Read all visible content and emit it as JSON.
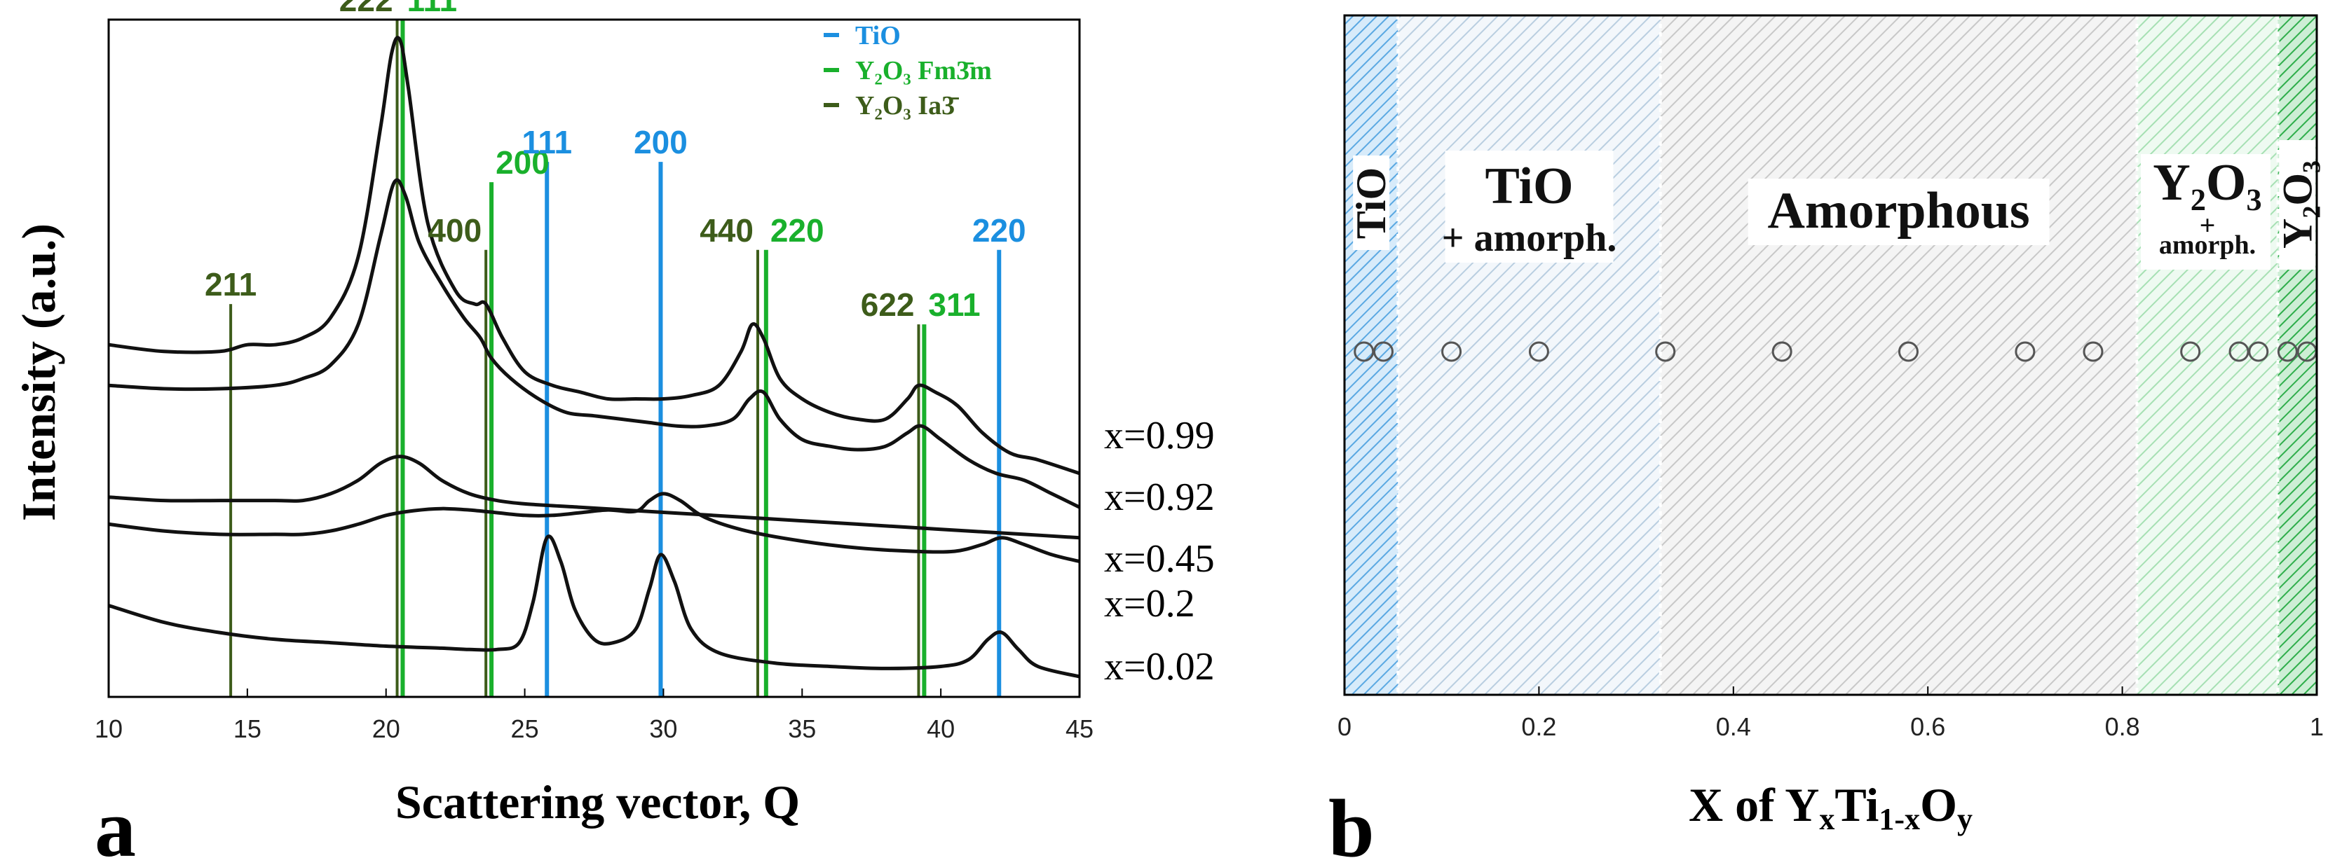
{
  "chart_data": [
    {
      "type": "line",
      "panel_label": "a",
      "xlabel": "Scattering vector, Q",
      "ylabel": "Intensity (a.u.)",
      "xlim": [
        10,
        45
      ],
      "xticks": [
        10,
        15,
        20,
        25,
        30,
        35,
        40,
        45
      ],
      "xtick_labels": [
        "10",
        "15",
        "20",
        "25",
        "30",
        "35",
        "40",
        "45"
      ],
      "legend_position": "top-right",
      "legend": [
        {
          "name": "TiO",
          "color": "#1b8fe0"
        },
        {
          "name": "Y₂O₃ Fm3̄m",
          "color": "#19b02c"
        },
        {
          "name": "Y₂O₃ Ia3̄",
          "color": "#3d5c1a"
        }
      ],
      "reference_lines": [
        {
          "phase": "Y2O3 Ia3",
          "hkl": "211",
          "q": 14.4,
          "top_intensity": 0.58,
          "color": "#3d5c1a"
        },
        {
          "phase": "Y2O3 Ia3",
          "hkl": "222",
          "q": 20.4,
          "top_intensity": 1.0,
          "color": "#3d5c1a"
        },
        {
          "phase": "Y2O3 Fm3m",
          "hkl": "111",
          "q": 20.6,
          "top_intensity": 1.0,
          "color": "#19b02c"
        },
        {
          "phase": "Y2O3 Ia3",
          "hkl": "400",
          "q": 23.6,
          "top_intensity": 0.66,
          "color": "#3d5c1a"
        },
        {
          "phase": "Y2O3 Fm3m",
          "hkl": "200",
          "q": 23.8,
          "top_intensity": 0.76,
          "color": "#19b02c"
        },
        {
          "phase": "TiO",
          "hkl": "111",
          "q": 25.8,
          "top_intensity": 0.79,
          "color": "#1b8fe0"
        },
        {
          "phase": "TiO",
          "hkl": "200",
          "q": 29.9,
          "top_intensity": 0.79,
          "color": "#1b8fe0"
        },
        {
          "phase": "Y2O3 Ia3",
          "hkl": "440",
          "q": 33.4,
          "top_intensity": 0.66,
          "color": "#3d5c1a"
        },
        {
          "phase": "Y2O3 Fm3m",
          "hkl": "220",
          "q": 33.7,
          "top_intensity": 0.66,
          "color": "#19b02c"
        },
        {
          "phase": "Y2O3 Ia3",
          "hkl": "622",
          "q": 39.2,
          "top_intensity": 0.55,
          "color": "#3d5c1a"
        },
        {
          "phase": "Y2O3 Fm3m",
          "hkl": "311",
          "q": 39.4,
          "top_intensity": 0.55,
          "color": "#19b02c"
        },
        {
          "phase": "TiO",
          "hkl": "220",
          "q": 42.1,
          "top_intensity": 0.66,
          "color": "#1b8fe0"
        }
      ],
      "series": [
        {
          "name": "x=0.99",
          "points": [
            [
              10,
              0.52
            ],
            [
              12,
              0.51
            ],
            [
              14,
              0.51
            ],
            [
              15,
              0.52
            ],
            [
              16,
              0.52
            ],
            [
              17,
              0.53
            ],
            [
              18,
              0.56
            ],
            [
              19,
              0.65
            ],
            [
              19.8,
              0.84
            ],
            [
              20.2,
              0.95
            ],
            [
              20.5,
              0.97
            ],
            [
              20.8,
              0.9
            ],
            [
              21.5,
              0.7
            ],
            [
              22.5,
              0.6
            ],
            [
              23.2,
              0.58
            ],
            [
              23.6,
              0.58
            ],
            [
              24.2,
              0.53
            ],
            [
              25,
              0.48
            ],
            [
              26,
              0.46
            ],
            [
              27,
              0.45
            ],
            [
              28,
              0.44
            ],
            [
              29,
              0.44
            ],
            [
              30,
              0.44
            ],
            [
              31,
              0.445
            ],
            [
              32,
              0.46
            ],
            [
              32.8,
              0.51
            ],
            [
              33.2,
              0.55
            ],
            [
              33.6,
              0.53
            ],
            [
              34.2,
              0.47
            ],
            [
              35,
              0.44
            ],
            [
              36,
              0.42
            ],
            [
              37,
              0.41
            ],
            [
              38,
              0.41
            ],
            [
              38.8,
              0.44
            ],
            [
              39.2,
              0.46
            ],
            [
              39.8,
              0.45
            ],
            [
              40.6,
              0.43
            ],
            [
              41.5,
              0.39
            ],
            [
              42.5,
              0.36
            ],
            [
              43.5,
              0.35
            ],
            [
              45,
              0.33
            ]
          ]
        },
        {
          "name": "x=0.92",
          "points": [
            [
              10,
              0.46
            ],
            [
              12,
              0.455
            ],
            [
              14,
              0.455
            ],
            [
              16,
              0.46
            ],
            [
              17,
              0.47
            ],
            [
              18,
              0.49
            ],
            [
              19,
              0.55
            ],
            [
              19.8,
              0.68
            ],
            [
              20.3,
              0.76
            ],
            [
              20.7,
              0.74
            ],
            [
              21.2,
              0.67
            ],
            [
              22,
              0.61
            ],
            [
              22.8,
              0.56
            ],
            [
              23.4,
              0.53
            ],
            [
              23.8,
              0.5
            ],
            [
              24.5,
              0.47
            ],
            [
              25.5,
              0.44
            ],
            [
              26.5,
              0.42
            ],
            [
              27.5,
              0.415
            ],
            [
              28.5,
              0.41
            ],
            [
              29.5,
              0.405
            ],
            [
              30.5,
              0.4
            ],
            [
              31.5,
              0.4
            ],
            [
              32.5,
              0.41
            ],
            [
              33.1,
              0.44
            ],
            [
              33.6,
              0.45
            ],
            [
              34.2,
              0.41
            ],
            [
              35,
              0.38
            ],
            [
              36,
              0.37
            ],
            [
              37,
              0.365
            ],
            [
              38,
              0.37
            ],
            [
              38.8,
              0.39
            ],
            [
              39.3,
              0.4
            ],
            [
              40,
              0.38
            ],
            [
              41,
              0.35
            ],
            [
              42,
              0.33
            ],
            [
              43,
              0.32
            ],
            [
              44,
              0.3
            ],
            [
              45,
              0.28
            ]
          ]
        },
        {
          "name": "x=0.45",
          "points": [
            [
              10,
              0.295
            ],
            [
              12,
              0.29
            ],
            [
              14,
              0.29
            ],
            [
              16,
              0.29
            ],
            [
              17,
              0.29
            ],
            [
              18,
              0.3
            ],
            [
              19,
              0.32
            ],
            [
              19.8,
              0.345
            ],
            [
              20.5,
              0.355
            ],
            [
              21.2,
              0.345
            ],
            [
              22,
              0.32
            ],
            [
              23,
              0.3
            ],
            [
              24,
              0.29
            ],
            [
              25,
              0.285
            ],
            [
              27,
              0.28
            ],
            [
              29,
              0.275
            ],
            [
              31,
              0.27
            ],
            [
              33,
              0.265
            ],
            [
              35,
              0.26
            ],
            [
              37,
              0.255
            ],
            [
              39,
              0.25
            ],
            [
              41,
              0.245
            ],
            [
              43,
              0.24
            ],
            [
              45,
              0.235
            ]
          ]
        },
        {
          "name": "x=0.2",
          "points": [
            [
              10,
              0.255
            ],
            [
              12,
              0.245
            ],
            [
              14,
              0.24
            ],
            [
              16,
              0.24
            ],
            [
              17,
              0.24
            ],
            [
              18,
              0.245
            ],
            [
              19,
              0.255
            ],
            [
              20,
              0.268
            ],
            [
              21,
              0.275
            ],
            [
              22,
              0.278
            ],
            [
              23,
              0.276
            ],
            [
              24,
              0.272
            ],
            [
              25,
              0.268
            ],
            [
              26,
              0.268
            ],
            [
              27,
              0.272
            ],
            [
              28,
              0.276
            ],
            [
              29,
              0.274
            ],
            [
              29.5,
              0.29
            ],
            [
              30,
              0.3
            ],
            [
              30.6,
              0.29
            ],
            [
              31.5,
              0.265
            ],
            [
              33,
              0.245
            ],
            [
              35,
              0.23
            ],
            [
              37,
              0.22
            ],
            [
              39,
              0.215
            ],
            [
              40.5,
              0.215
            ],
            [
              41.5,
              0.225
            ],
            [
              42.2,
              0.235
            ],
            [
              43,
              0.225
            ],
            [
              44,
              0.21
            ],
            [
              45,
              0.2
            ]
          ]
        },
        {
          "name": "x=0.02",
          "points": [
            [
              10,
              0.135
            ],
            [
              12,
              0.11
            ],
            [
              14,
              0.095
            ],
            [
              16,
              0.085
            ],
            [
              18,
              0.08
            ],
            [
              20,
              0.075
            ],
            [
              22,
              0.072
            ],
            [
              23,
              0.07
            ],
            [
              24,
              0.07
            ],
            [
              24.8,
              0.08
            ],
            [
              25.3,
              0.14
            ],
            [
              25.8,
              0.235
            ],
            [
              26.3,
              0.2
            ],
            [
              26.8,
              0.13
            ],
            [
              27.5,
              0.085
            ],
            [
              28.2,
              0.08
            ],
            [
              29,
              0.1
            ],
            [
              29.5,
              0.16
            ],
            [
              29.9,
              0.21
            ],
            [
              30.4,
              0.17
            ],
            [
              31,
              0.1
            ],
            [
              32,
              0.065
            ],
            [
              34,
              0.05
            ],
            [
              36,
              0.045
            ],
            [
              38,
              0.042
            ],
            [
              40,
              0.045
            ],
            [
              41,
              0.055
            ],
            [
              41.7,
              0.085
            ],
            [
              42.2,
              0.095
            ],
            [
              42.8,
              0.07
            ],
            [
              43.5,
              0.045
            ],
            [
              45,
              0.03
            ]
          ]
        }
      ],
      "series_labels": [
        "x=0.99",
        "x=0.92",
        "x=0.45",
        "x=0.2",
        "x=0.02"
      ]
    },
    {
      "type": "scatter",
      "panel_label": "b",
      "xlabel_parts": {
        "base": "X of Y",
        "sub1": "x",
        "mid": "Ti",
        "sub2": "1-x",
        "mid2": "O",
        "sub3": "y"
      },
      "xlim": [
        0,
        1
      ],
      "xticks": [
        0,
        0.2,
        0.4,
        0.6,
        0.8,
        1
      ],
      "xtick_labels": [
        "0",
        "0.2",
        "0.4",
        "0.6",
        "0.8",
        "1"
      ],
      "regions": [
        {
          "from": 0.0,
          "to": 0.055,
          "color": "#59a6e0",
          "label": "TiO",
          "sublabel": ""
        },
        {
          "from": 0.055,
          "to": 0.325,
          "color": "#a9c3d8",
          "label": "TiO",
          "sublabel": "+ amorph."
        },
        {
          "from": 0.325,
          "to": 0.815,
          "color": "#bdbdbd",
          "label": "Amorphous",
          "sublabel": ""
        },
        {
          "from": 0.815,
          "to": 0.96,
          "color": "#8fd9a0",
          "label": "Y₂O₃",
          "sublabel_top": "+",
          "sublabel": "amorph."
        },
        {
          "from": 0.96,
          "to": 1.0,
          "color": "#3fba58",
          "label": "Y₂O₃",
          "sublabel": ""
        }
      ],
      "x_values": [
        0.02,
        0.04,
        0.11,
        0.2,
        0.33,
        0.45,
        0.58,
        0.7,
        0.77,
        0.87,
        0.92,
        0.94,
        0.97,
        0.99
      ]
    }
  ]
}
